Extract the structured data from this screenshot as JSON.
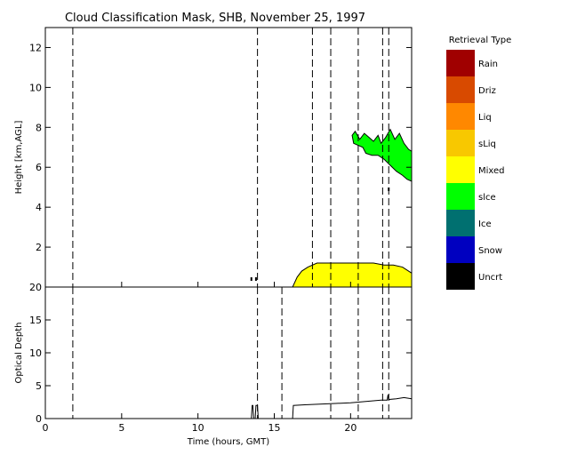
{
  "title": "Cloud Classification Mask, SHB, November 25, 1997",
  "legend": {
    "title": "Retrieval Type",
    "items": [
      {
        "label": "Rain",
        "color": "#a00000"
      },
      {
        "label": "Driz",
        "color": "#d84a00"
      },
      {
        "label": "Liq",
        "color": "#ff8800"
      },
      {
        "label": "sLiq",
        "color": "#f8c800"
      },
      {
        "label": "Mixed",
        "color": "#ffff00"
      },
      {
        "label": "slce",
        "color": "#00ff00"
      },
      {
        "label": "Ice",
        "color": "#007070"
      },
      {
        "label": "Snow",
        "color": "#0000c0"
      },
      {
        "label": "Uncrt",
        "color": "#000000"
      }
    ]
  },
  "chart_data": [
    {
      "type": "heatmap",
      "name": "classification-mask",
      "ylabel": "Height [km,AGL]",
      "xlim": [
        0,
        24
      ],
      "ylim": [
        0,
        13
      ],
      "yticks": [
        2,
        4,
        6,
        8,
        10,
        12
      ],
      "dashed_lines_x": [
        1.8,
        13.9,
        17.5,
        18.7,
        20.5,
        22.1,
        22.5
      ],
      "regions": [
        {
          "class": "Mixed",
          "color": "#ffff00",
          "x_start": 16.2,
          "x_end": 24,
          "top_profile": [
            [
              16.2,
              0.0
            ],
            [
              16.5,
              0.5
            ],
            [
              16.8,
              0.8
            ],
            [
              17.2,
              1.0
            ],
            [
              17.8,
              1.2
            ],
            [
              19.0,
              1.2
            ],
            [
              20.0,
              1.2
            ],
            [
              21.5,
              1.2
            ],
            [
              22.2,
              1.1
            ],
            [
              22.8,
              1.1
            ],
            [
              23.4,
              1.0
            ],
            [
              24.0,
              0.7
            ]
          ]
        },
        {
          "class": "slce",
          "color": "#00ff00",
          "upper_profile": [
            [
              20.1,
              7.6
            ],
            [
              20.3,
              7.8
            ],
            [
              20.6,
              7.4
            ],
            [
              20.9,
              7.7
            ],
            [
              21.2,
              7.5
            ],
            [
              21.5,
              7.3
            ],
            [
              21.8,
              7.6
            ],
            [
              22.0,
              7.2
            ],
            [
              22.3,
              7.5
            ],
            [
              22.6,
              7.9
            ],
            [
              22.9,
              7.4
            ],
            [
              23.2,
              7.7
            ],
            [
              23.5,
              7.2
            ],
            [
              23.8,
              6.9
            ],
            [
              24.0,
              6.8
            ]
          ],
          "lower_profile": [
            [
              24.0,
              5.3
            ],
            [
              23.7,
              5.4
            ],
            [
              23.4,
              5.6
            ],
            [
              23.0,
              5.8
            ],
            [
              22.6,
              6.1
            ],
            [
              22.2,
              6.4
            ],
            [
              21.8,
              6.6
            ],
            [
              21.4,
              6.6
            ],
            [
              21.0,
              6.7
            ],
            [
              20.8,
              7.0
            ],
            [
              20.5,
              7.1
            ],
            [
              20.2,
              7.2
            ]
          ]
        },
        {
          "class": "Uncrt",
          "color": "#000000",
          "patches": [
            {
              "x": 13.5,
              "height": 0.4
            },
            {
              "x": 13.8,
              "height": 0.4
            },
            {
              "x": 22.5,
              "height": 4.9
            }
          ]
        }
      ]
    },
    {
      "type": "line",
      "name": "optical-depth",
      "xlabel": "Time (hours, GMT)",
      "ylabel": "Optical Depth",
      "xlim": [
        0,
        24
      ],
      "ylim": [
        0,
        20
      ],
      "xticks": [
        0,
        5,
        10,
        15,
        20
      ],
      "yticks": [
        0,
        5,
        10,
        15,
        20
      ],
      "dashed_lines_x": [
        1.8,
        13.9,
        15.5,
        18.7,
        20.5,
        22.1,
        22.5
      ],
      "series": [
        {
          "values": [
            [
              13.5,
              0
            ],
            [
              13.55,
              2
            ],
            [
              13.6,
              2
            ],
            [
              13.65,
              0
            ],
            [
              13.75,
              0
            ],
            [
              13.8,
              2
            ],
            [
              13.9,
              2
            ],
            [
              13.95,
              0
            ],
            [
              16.2,
              0
            ],
            [
              16.25,
              2.0
            ],
            [
              17,
              2.1
            ],
            [
              18,
              2.2
            ],
            [
              19,
              2.3
            ],
            [
              20,
              2.4
            ],
            [
              21,
              2.6
            ],
            [
              22,
              2.8
            ],
            [
              22.4,
              2.8
            ],
            [
              22.45,
              3.6
            ],
            [
              22.5,
              2.9
            ],
            [
              23,
              3.0
            ],
            [
              23.5,
              3.2
            ],
            [
              24,
              3.0
            ]
          ]
        }
      ]
    }
  ]
}
